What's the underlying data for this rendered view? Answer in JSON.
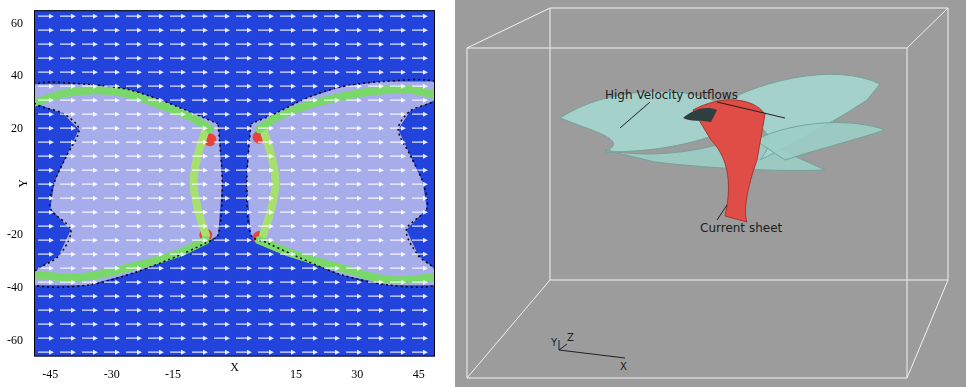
{
  "chart_data": {
    "type": "scatter",
    "xlabel": "X",
    "ylabel": "Y",
    "xlim": [
      -49,
      49
    ],
    "ylim": [
      -66,
      65
    ],
    "xticks": [
      -45,
      -30,
      -15,
      15,
      30,
      45
    ],
    "yticks": [
      -60,
      -40,
      -20,
      20,
      40,
      60
    ],
    "grid": false,
    "series": [
      {
        "type": "area",
        "color": "#c8c8ee",
        "line_style": "dotted",
        "x": [
          -4,
          -10,
          -18,
          -26,
          -36,
          -49,
          -49,
          -42,
          -38,
          -41,
          -44,
          -45,
          -40,
          -43,
          -49,
          -49,
          -36,
          -24,
          -14,
          -7,
          -4,
          -3
        ],
        "values": [
          22,
          26,
          31,
          35,
          37,
          37,
          30,
          26,
          20,
          10,
          0,
          -10,
          -18,
          -28,
          -34,
          -39,
          -39,
          -34,
          -28,
          -23,
          -20,
          0
        ]
      },
      {
        "type": "area",
        "color": "#c8c8ee",
        "line_style": "dotted",
        "x": [
          4,
          10,
          18,
          26,
          36,
          49,
          49,
          43,
          40,
          43,
          46,
          47,
          42,
          45,
          49,
          49,
          38,
          26,
          15,
          8,
          4,
          3
        ],
        "values": [
          22,
          26,
          32,
          36,
          38,
          38,
          31,
          27,
          20,
          10,
          0,
          -10,
          -18,
          -28,
          -33,
          -39,
          -39,
          -35,
          -28,
          -23,
          -20,
          0
        ]
      },
      {
        "type": "line",
        "color": "#7ad86a",
        "x": [
          -49,
          -40,
          -28,
          -18,
          -10,
          -6
        ],
        "values": [
          30,
          34,
          34,
          29,
          24,
          20
        ]
      },
      {
        "type": "line",
        "color": "#7ad86a",
        "x": [
          -49,
          -38,
          -25,
          -14,
          -7
        ],
        "values": [
          -35,
          -36,
          -32,
          -27,
          -22
        ]
      },
      {
        "type": "line",
        "color": "#7ad86a",
        "x": [
          6,
          11,
          20,
          32,
          42,
          49
        ],
        "values": [
          20,
          25,
          30,
          34,
          35,
          33
        ]
      },
      {
        "type": "line",
        "color": "#7ad86a",
        "x": [
          6,
          14,
          25,
          38,
          49
        ],
        "values": [
          -22,
          -27,
          -32,
          -37,
          -36
        ]
      },
      {
        "type": "line",
        "color": "#a8e070",
        "x": [
          -7,
          -9,
          -10,
          -9,
          -7
        ],
        "values": [
          20,
          10,
          0,
          -10,
          -20
        ]
      },
      {
        "type": "line",
        "color": "#a8e070",
        "x": [
          7,
          9,
          10,
          9,
          7
        ],
        "values": [
          20,
          10,
          0,
          -10,
          -20
        ]
      },
      {
        "type": "scatter",
        "color": "#e8403a",
        "marker": "circle",
        "x": [
          -6,
          6,
          -7,
          6
        ],
        "values": [
          16,
          17,
          -20,
          -21
        ]
      }
    ]
  },
  "panel_3d": {
    "annotations": [
      "High Velocity outflows",
      "Current sheet"
    ],
    "axes": [
      "X",
      "Y",
      "Z"
    ]
  }
}
